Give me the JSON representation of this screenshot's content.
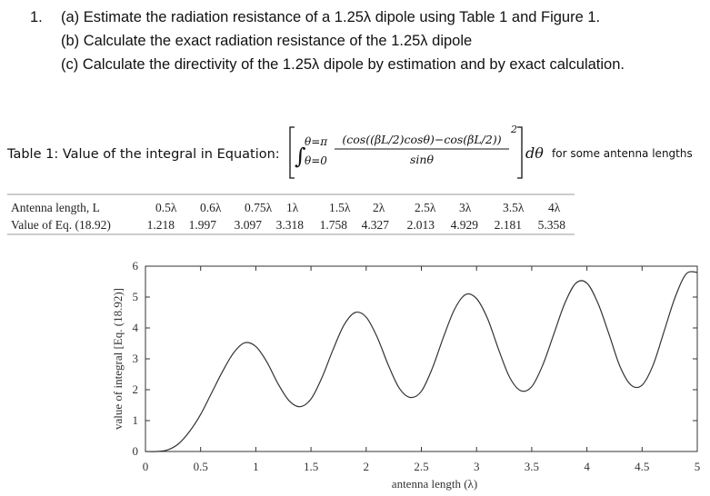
{
  "question_number": "1.",
  "question_parts": [
    "(a) Estimate the radiation resistance of a 1.25λ dipole using Table 1 and Figure 1.",
    "(b) Calculate the exact radiation resistance of the 1.25λ dipole",
    "(c) Calculate the directivity of the 1.25λ dipole by estimation and by exact calculation."
  ],
  "caption": {
    "text": "Table 1: Value of the integral in Equation:",
    "upper_limit": "θ=π",
    "lower_limit": "θ=0",
    "numerator": "(cos((βL/2)cosθ)−cos(βL/2))",
    "exponent": "2",
    "denominator": "sinθ",
    "differential": "dθ",
    "suffix": "for some antenna lengths"
  },
  "table": {
    "header": [
      "Antenna length, L",
      "0.5λ",
      "0.6λ",
      "0.75λ",
      "1λ",
      "1.5λ",
      "2λ",
      "2.5λ",
      "3λ",
      "3.5λ",
      "4λ"
    ],
    "rows": [
      [
        "Value of Eq. (18.92)",
        "1.218",
        "1.997",
        "3.097",
        "3.318",
        "1.758",
        "4.327",
        "2.013",
        "4.929",
        "2.181",
        "5.358"
      ]
    ]
  },
  "chart_data": {
    "type": "line",
    "x_label": "antenna length (λ)",
    "y_label": "value of integral [Eq. (18.92)]",
    "x": [
      0,
      0.1,
      0.2,
      0.3,
      0.4,
      0.5,
      0.6,
      0.7,
      0.8,
      0.9,
      1.0,
      1.1,
      1.2,
      1.3,
      1.4,
      1.5,
      1.6,
      1.7,
      1.8,
      1.9,
      2.0,
      2.1,
      2.2,
      2.3,
      2.4,
      2.5,
      2.6,
      2.7,
      2.8,
      2.9,
      3.0,
      3.1,
      3.2,
      3.3,
      3.4,
      3.5,
      3.6,
      3.7,
      3.8,
      3.9,
      4.0,
      4.1,
      4.2,
      4.3,
      4.4,
      4.5,
      4.6,
      4.7,
      4.8,
      4.9,
      5.0
    ],
    "values": [
      0,
      0,
      0.05,
      0.25,
      0.65,
      1.2,
      1.9,
      2.6,
      3.2,
      3.52,
      3.4,
      2.9,
      2.2,
      1.65,
      1.45,
      1.7,
      2.4,
      3.3,
      4.1,
      4.5,
      4.35,
      3.7,
      2.8,
      2.05,
      1.75,
      1.95,
      2.7,
      3.7,
      4.6,
      5.08,
      4.95,
      4.3,
      3.3,
      2.4,
      1.97,
      2.1,
      2.8,
      3.8,
      4.8,
      5.45,
      5.45,
      4.8,
      3.8,
      2.75,
      2.15,
      2.15,
      2.8,
      3.9,
      5.0,
      5.75,
      5.8
    ],
    "color": "#333333",
    "xlim": [
      0,
      5
    ],
    "ylim": [
      0,
      6
    ],
    "xticks": [
      0,
      0.5,
      1,
      1.5,
      2,
      2.5,
      3,
      3.5,
      4,
      4.5,
      5
    ],
    "yticks": [
      0,
      1,
      2,
      3,
      4,
      5,
      6
    ]
  }
}
